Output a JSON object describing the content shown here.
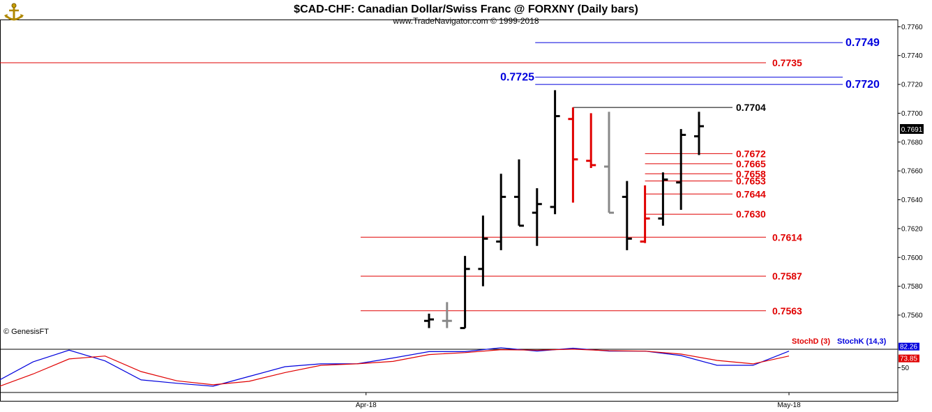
{
  "header": {
    "title": "$CAD-CHF:  Canadian Dollar/Swiss Franc @ FORXNY  (Daily bars)",
    "subtitle": "www.TradeNavigator.com © 1999-2018"
  },
  "credit": "© GenesisFT",
  "last_price_label": "0.7691",
  "icons": {
    "logo": "anchor-logo-icon"
  },
  "colors": {
    "bull": "#000000",
    "bear": "#e00000",
    "neutral": "#888888",
    "blue": "#0000dd",
    "red": "#e00000"
  },
  "chart_data": [
    {
      "type": "ohlc",
      "title": "$CAD-CHF:  Canadian Dollar/Swiss Franc @ FORXNY  (Daily bars)",
      "ylim": [
        0.7545,
        0.7765
      ],
      "ytick_values": [
        0.756,
        0.758,
        0.76,
        0.762,
        0.764,
        0.766,
        0.768,
        0.77,
        0.772,
        0.774,
        0.776
      ],
      "ytick_labels": [
        "0.7560",
        "0.7580",
        "0.7600",
        "0.7620",
        "0.7640",
        "0.7660",
        "0.7680",
        "0.7700",
        "0.7720",
        "0.7740",
        "0.7760"
      ],
      "x_labels": [
        {
          "label": "Apr-18",
          "bar": -3.5
        },
        {
          "label": "May-18",
          "bar": 20
        }
      ],
      "bars": [
        {
          "o": 0.7556,
          "h": 0.7561,
          "l": 0.7551,
          "c": 0.7557,
          "color": "black"
        },
        {
          "o": 0.7556,
          "h": 0.7569,
          "l": 0.7551,
          "c": 0.7556,
          "color": "gray"
        },
        {
          "o": 0.7551,
          "h": 0.7601,
          "l": 0.7551,
          "c": 0.7592,
          "color": "black"
        },
        {
          "o": 0.7592,
          "h": 0.7629,
          "l": 0.758,
          "c": 0.7613,
          "color": "black"
        },
        {
          "o": 0.7611,
          "h": 0.7658,
          "l": 0.7605,
          "c": 0.7642,
          "color": "black"
        },
        {
          "o": 0.7642,
          "h": 0.7668,
          "l": 0.7622,
          "c": 0.7622,
          "color": "black"
        },
        {
          "o": 0.7631,
          "h": 0.7648,
          "l": 0.7608,
          "c": 0.7637,
          "color": "black"
        },
        {
          "o": 0.7635,
          "h": 0.7716,
          "l": 0.763,
          "c": 0.7698,
          "color": "black"
        },
        {
          "o": 0.7696,
          "h": 0.7704,
          "l": 0.7638,
          "c": 0.7668,
          "color": "red"
        },
        {
          "o": 0.7667,
          "h": 0.77,
          "l": 0.7662,
          "c": 0.7664,
          "color": "red"
        },
        {
          "o": 0.7663,
          "h": 0.7701,
          "l": 0.7631,
          "c": 0.7631,
          "color": "gray"
        },
        {
          "o": 0.7642,
          "h": 0.7653,
          "l": 0.7605,
          "c": 0.7613,
          "color": "black"
        },
        {
          "o": 0.7611,
          "h": 0.765,
          "l": 0.761,
          "c": 0.7627,
          "color": "red"
        },
        {
          "o": 0.7627,
          "h": 0.7659,
          "l": 0.7622,
          "c": 0.7654,
          "color": "black"
        },
        {
          "o": 0.7652,
          "h": 0.7689,
          "l": 0.7633,
          "c": 0.7685,
          "color": "black"
        },
        {
          "o": 0.7684,
          "h": 0.7701,
          "l": 0.7671,
          "c": 0.7691,
          "color": "black"
        }
      ],
      "levels": [
        {
          "value": 0.7749,
          "label": "0.7749",
          "color": "blue",
          "from_bar": 5.9,
          "label_side": "right-far"
        },
        {
          "value": 0.7735,
          "label": "0.7735",
          "color": "red",
          "from_bar": -26,
          "label_side": "right"
        },
        {
          "value": 0.7725,
          "label": "0.7725",
          "color": "blue",
          "from_bar": 5.9,
          "label_side": "left"
        },
        {
          "value": 0.772,
          "label": "0.7720",
          "color": "blue",
          "from_bar": 5.9,
          "label_side": "right-far"
        },
        {
          "value": 0.7704,
          "label": "0.7704",
          "color": "black",
          "from_bar": 8,
          "label_side": "right-near"
        },
        {
          "value": 0.7672,
          "label": "0.7672",
          "color": "red",
          "from_bar": 12,
          "label_side": "right-near"
        },
        {
          "value": 0.7665,
          "label": "0.7665",
          "color": "red",
          "from_bar": 12,
          "label_side": "right-near"
        },
        {
          "value": 0.7658,
          "label": "0.7658",
          "color": "red",
          "from_bar": 12,
          "label_side": "right-near"
        },
        {
          "value": 0.7653,
          "label": "0.7653",
          "color": "red",
          "from_bar": 12,
          "label_side": "right-near"
        },
        {
          "value": 0.7644,
          "label": "0.7644",
          "color": "red",
          "from_bar": 12,
          "label_side": "right-near"
        },
        {
          "value": 0.763,
          "label": "0.7630",
          "color": "red",
          "from_bar": 12,
          "label_side": "right-near"
        },
        {
          "value": 0.7614,
          "label": "0.7614",
          "color": "red",
          "from_bar": -3.8,
          "label_side": "right"
        },
        {
          "value": 0.7587,
          "label": "0.7587",
          "color": "red",
          "from_bar": -3.8,
          "label_side": "right"
        },
        {
          "value": 0.7563,
          "label": "0.7563",
          "color": "red",
          "from_bar": -3.8,
          "label_side": "right"
        }
      ]
    },
    {
      "type": "line",
      "ylim": [
        2,
        105
      ],
      "ytick_values": [
        50
      ],
      "ytick_labels": [
        "50"
      ],
      "last_value_labels": {
        "k": "82.26",
        "d": "73.85"
      },
      "series": [
        {
          "name": "StochK (14,3)",
          "color": "blue",
          "x": [
            -26,
            -24,
            -22,
            -20,
            -18,
            -16,
            -14,
            -12,
            -10,
            -8,
            -6,
            -4,
            -2,
            0,
            2,
            4,
            6,
            8,
            10,
            12,
            14,
            16,
            18,
            20
          ],
          "values": [
            2,
            22,
            62,
            86,
            64,
            25,
            18,
            12,
            32,
            52,
            58,
            58,
            70,
            83,
            83,
            91,
            84,
            90,
            84,
            84,
            75,
            55,
            55,
            84
          ]
        },
        {
          "name": "StochD (3)",
          "color": "red",
          "x": [
            -26,
            -24,
            -22,
            -20,
            -18,
            -16,
            -14,
            -12,
            -10,
            -8,
            -6,
            -4,
            -2,
            0,
            2,
            4,
            6,
            8,
            10,
            12,
            14,
            16,
            18,
            20
          ],
          "values": [
            0,
            10,
            37,
            68,
            74,
            42,
            23,
            15,
            22,
            40,
            55,
            58,
            63,
            77,
            81,
            87,
            86,
            88,
            85,
            84,
            78,
            65,
            58,
            74
          ]
        }
      ]
    }
  ]
}
